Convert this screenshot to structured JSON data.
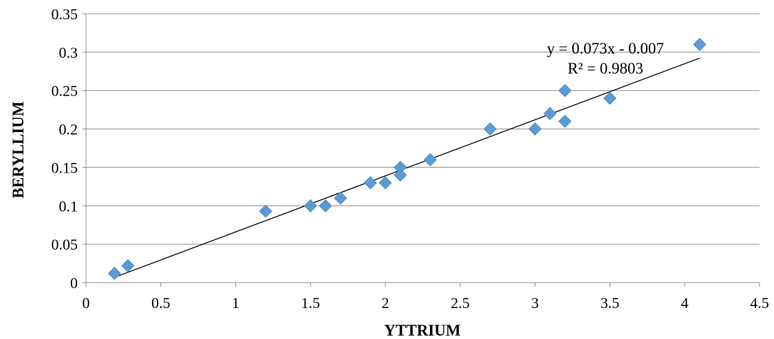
{
  "chart_data": {
    "type": "scatter",
    "title": "",
    "xlabel": "YTTRIUM",
    "ylabel": "BERYLLIUM",
    "xlim": [
      0,
      4.5
    ],
    "ylim": [
      0,
      0.35
    ],
    "x_ticks": [
      0,
      0.5,
      1,
      1.5,
      2,
      2.5,
      3,
      3.5,
      4,
      4.5
    ],
    "x_tick_labels": [
      "0",
      "0.5",
      "1",
      "1.5",
      "2",
      "2.5",
      "3",
      "3.5",
      "4",
      "4.5"
    ],
    "y_ticks": [
      0,
      0.05,
      0.1,
      0.15,
      0.2,
      0.25,
      0.3,
      0.35
    ],
    "y_tick_labels": [
      "0",
      "0.05",
      "0.1",
      "0.15",
      "0.2",
      "0.25",
      "0.3",
      "0.35"
    ],
    "grid": "horizontal",
    "legend": "none",
    "series": [
      {
        "marker": "diamond",
        "color": "#5b9bd5",
        "points": [
          {
            "x": 0.19,
            "y": 0.012
          },
          {
            "x": 0.28,
            "y": 0.022
          },
          {
            "x": 1.2,
            "y": 0.093
          },
          {
            "x": 1.5,
            "y": 0.1
          },
          {
            "x": 1.6,
            "y": 0.1
          },
          {
            "x": 1.7,
            "y": 0.11
          },
          {
            "x": 1.9,
            "y": 0.13
          },
          {
            "x": 2.0,
            "y": 0.13
          },
          {
            "x": 2.1,
            "y": 0.15
          },
          {
            "x": 2.1,
            "y": 0.14
          },
          {
            "x": 2.3,
            "y": 0.16
          },
          {
            "x": 2.7,
            "y": 0.2
          },
          {
            "x": 3.0,
            "y": 0.2
          },
          {
            "x": 3.1,
            "y": 0.22
          },
          {
            "x": 3.2,
            "y": 0.25
          },
          {
            "x": 3.2,
            "y": 0.21
          },
          {
            "x": 3.5,
            "y": 0.24
          },
          {
            "x": 4.1,
            "y": 0.31
          }
        ]
      }
    ],
    "trendline": {
      "slope": 0.073,
      "intercept": -0.007,
      "x_range": [
        0.19,
        4.1
      ],
      "color": "#000000",
      "equation": "y = 0.073x - 0.007",
      "r_squared": "R² = 0.9803"
    }
  }
}
